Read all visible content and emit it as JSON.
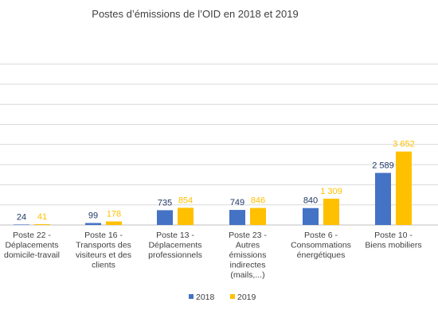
{
  "chart_data": {
    "type": "bar",
    "title": "Postes d’émissions de l’OID en 2018 et 2019",
    "xlabel": "",
    "ylabel": "",
    "ylim": [
      0,
      10000
    ],
    "grid": true,
    "legend_position": "bottom",
    "categories": [
      "Poste 22 - Déplacements domicile-travail",
      "Poste 16 - Transports des visiteurs et des clients",
      "Poste 13 - Déplacements professionnels",
      "Poste 23 - Autres émissions indirectes (mails,...)",
      "Poste 6 - Consommations énergétiques",
      "Poste 10 - Biens mobiliers"
    ],
    "category_lines": [
      [
        "Poste 22 -",
        "Déplacements",
        "domicile-travail"
      ],
      [
        "Poste 16 -",
        "Transports des",
        "visiteurs et des",
        "clients"
      ],
      [
        "Poste 13 -",
        "Déplacements",
        "professionnels"
      ],
      [
        "Poste 23 -",
        "Autres",
        "émissions",
        "indirectes",
        "(mails,...)"
      ],
      [
        "Poste 6 -",
        "Consommations",
        "énergétiques"
      ],
      [
        "Poste 10 -",
        "Biens mobiliers"
      ]
    ],
    "series": [
      {
        "name": "2018",
        "color": "#4472c4",
        "values": [
          24,
          99,
          735,
          749,
          840,
          2589
        ],
        "labels": [
          "24",
          "99",
          "735",
          "749",
          "840",
          "2 589"
        ]
      },
      {
        "name": "2019",
        "color": "#ffc000",
        "values": [
          41,
          178,
          854,
          846,
          1309,
          3652
        ],
        "labels": [
          "41",
          "178",
          "854",
          "846",
          "1 309",
          "3 652"
        ]
      }
    ]
  }
}
